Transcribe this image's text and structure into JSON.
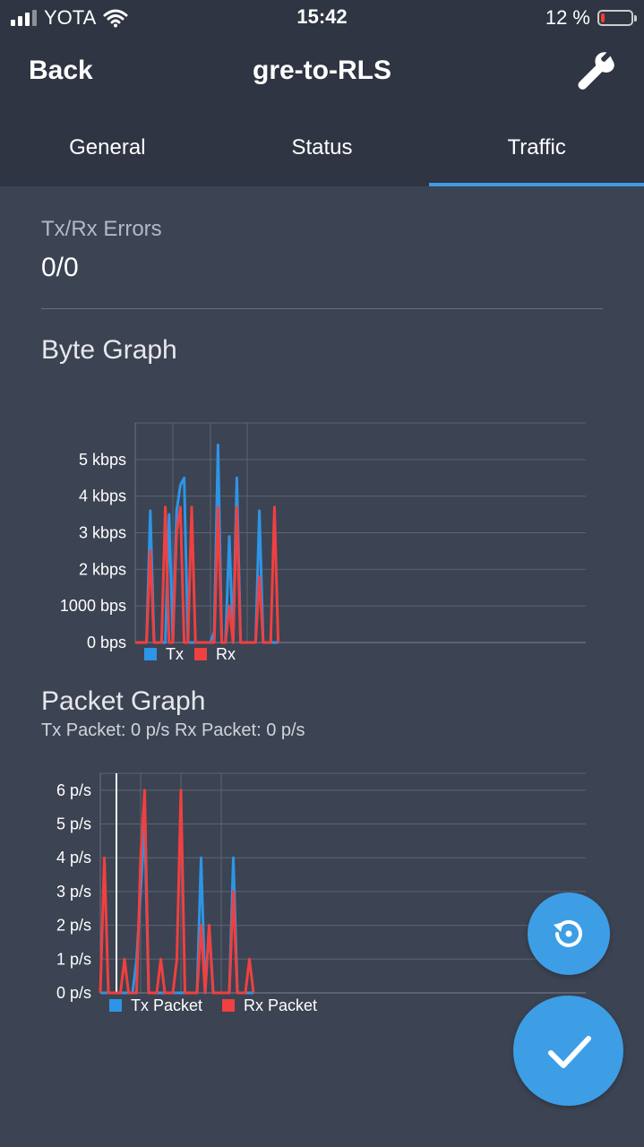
{
  "status_bar": {
    "carrier": "YOTA",
    "time": "15:42",
    "battery": "12 %",
    "battery_level": 0.12,
    "signal_icon": "cellular-signal-icon",
    "wifi_icon": "wifi-icon",
    "battery_icon": "battery-icon"
  },
  "nav": {
    "back_label": "Back",
    "title": "gre-to-RLS",
    "settings_icon": "wrench-icon"
  },
  "tabs": [
    {
      "label": "General",
      "active": false
    },
    {
      "label": "Status",
      "active": false
    },
    {
      "label": "Traffic",
      "active": true
    }
  ],
  "errors": {
    "label": "Tx/Rx Errors",
    "value": "0/0"
  },
  "byte_graph": {
    "title": "Byte Graph"
  },
  "packet_graph": {
    "title": "Packet Graph",
    "subtitle": "Tx Packet: 0 p/s  Rx Packet: 0 p/s"
  },
  "colors": {
    "tx": "#2d95e6",
    "rx": "#f04040",
    "accent": "#3d9ee6",
    "background": "#3c4352",
    "header": "#2f3542"
  },
  "fabs": {
    "reset_icon": "history-reset-icon",
    "confirm_icon": "checkmark-icon"
  },
  "chart_data": [
    {
      "type": "line",
      "title": "Byte Graph",
      "ylabel": "",
      "xlabel": "",
      "y_ticks": [
        "0 bps",
        "1000 bps",
        "2 kbps",
        "3 kbps",
        "4 kbps",
        "5 kbps"
      ],
      "ylim": [
        0,
        6000
      ],
      "grid": true,
      "legend": "bottom-left",
      "series": [
        {
          "name": "Tx",
          "color": "#2d95e6",
          "values": [
            0,
            0,
            0,
            0,
            3600,
            0,
            0,
            0,
            0,
            3500,
            0,
            3600,
            4300,
            4500,
            0,
            0,
            0,
            0,
            0,
            0,
            0,
            300,
            5400,
            0,
            0,
            2900,
            0,
            4500,
            0,
            0,
            0,
            0,
            0,
            3600,
            0,
            0,
            0,
            0,
            0
          ]
        },
        {
          "name": "Rx",
          "color": "#f04040",
          "values": [
            0,
            0,
            0,
            0,
            2500,
            0,
            0,
            0,
            3700,
            0,
            0,
            3000,
            3700,
            0,
            0,
            3700,
            0,
            0,
            0,
            0,
            0,
            0,
            3700,
            0,
            0,
            1000,
            0,
            3700,
            0,
            0,
            0,
            0,
            0,
            1800,
            0,
            0,
            0,
            3700,
            0
          ]
        }
      ]
    },
    {
      "type": "line",
      "title": "Packet Graph",
      "ylabel": "",
      "xlabel": "",
      "y_ticks": [
        "0 p/s",
        "1 p/s",
        "2 p/s",
        "3 p/s",
        "4 p/s",
        "5 p/s",
        "6 p/s"
      ],
      "ylim": [
        0,
        6.5
      ],
      "grid": true,
      "legend": "bottom-left",
      "series": [
        {
          "name": "Tx Packet",
          "color": "#2d95e6",
          "values": [
            0,
            0,
            0,
            0,
            0,
            0,
            0,
            0,
            0,
            1,
            3,
            5,
            0,
            0,
            0,
            0,
            0,
            0,
            0,
            0,
            0,
            0,
            0,
            0,
            0,
            4,
            0,
            2,
            0,
            0,
            0,
            0,
            0,
            4,
            0,
            0,
            0,
            0,
            0
          ]
        },
        {
          "name": "Rx Packet",
          "color": "#f04040",
          "values": [
            0,
            4,
            0,
            0,
            0,
            0,
            1,
            0,
            0,
            0,
            4,
            6,
            0,
            0,
            0,
            1,
            0,
            0,
            0,
            1,
            6,
            0,
            0,
            0,
            0,
            2,
            0,
            2,
            0,
            0,
            0,
            0,
            0,
            3,
            0,
            0,
            0,
            1,
            0
          ]
        }
      ]
    }
  ]
}
